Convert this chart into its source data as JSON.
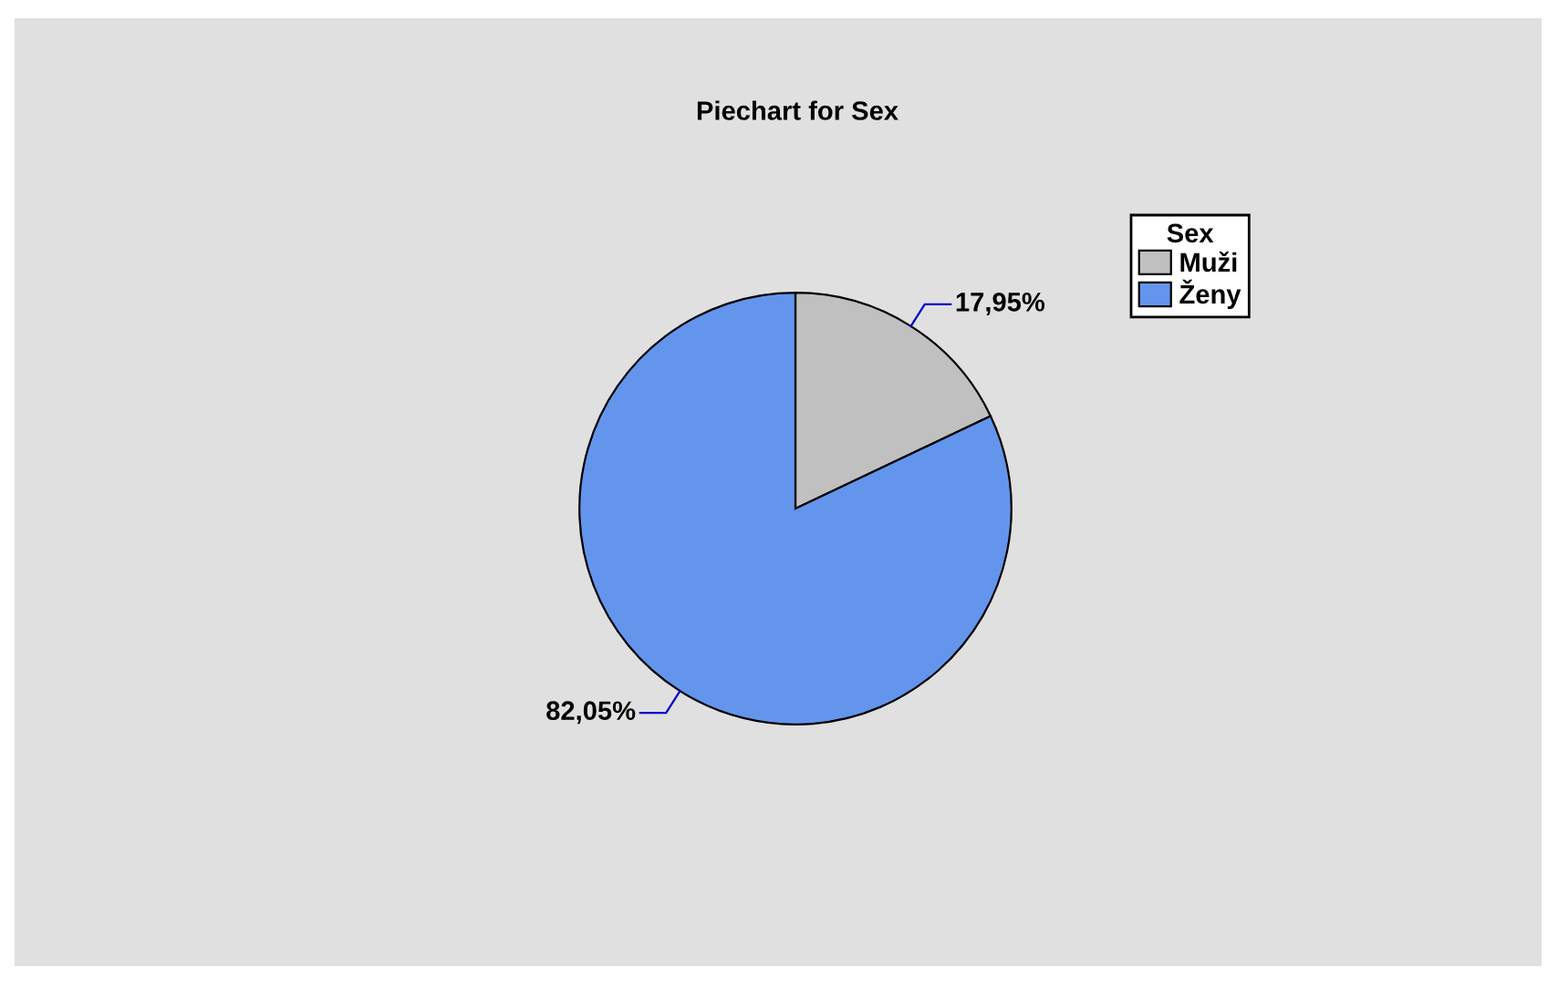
{
  "chart_data": {
    "type": "pie",
    "title": "Piechart for Sex",
    "legend_title": "Sex",
    "categories": [
      "Muži",
      "Ženy"
    ],
    "values": [
      17.95,
      82.05
    ],
    "colors": [
      "#c0c0c0",
      "#6495ed"
    ],
    "value_labels": [
      "17,95%",
      "82,05%"
    ],
    "legend": "top right"
  }
}
